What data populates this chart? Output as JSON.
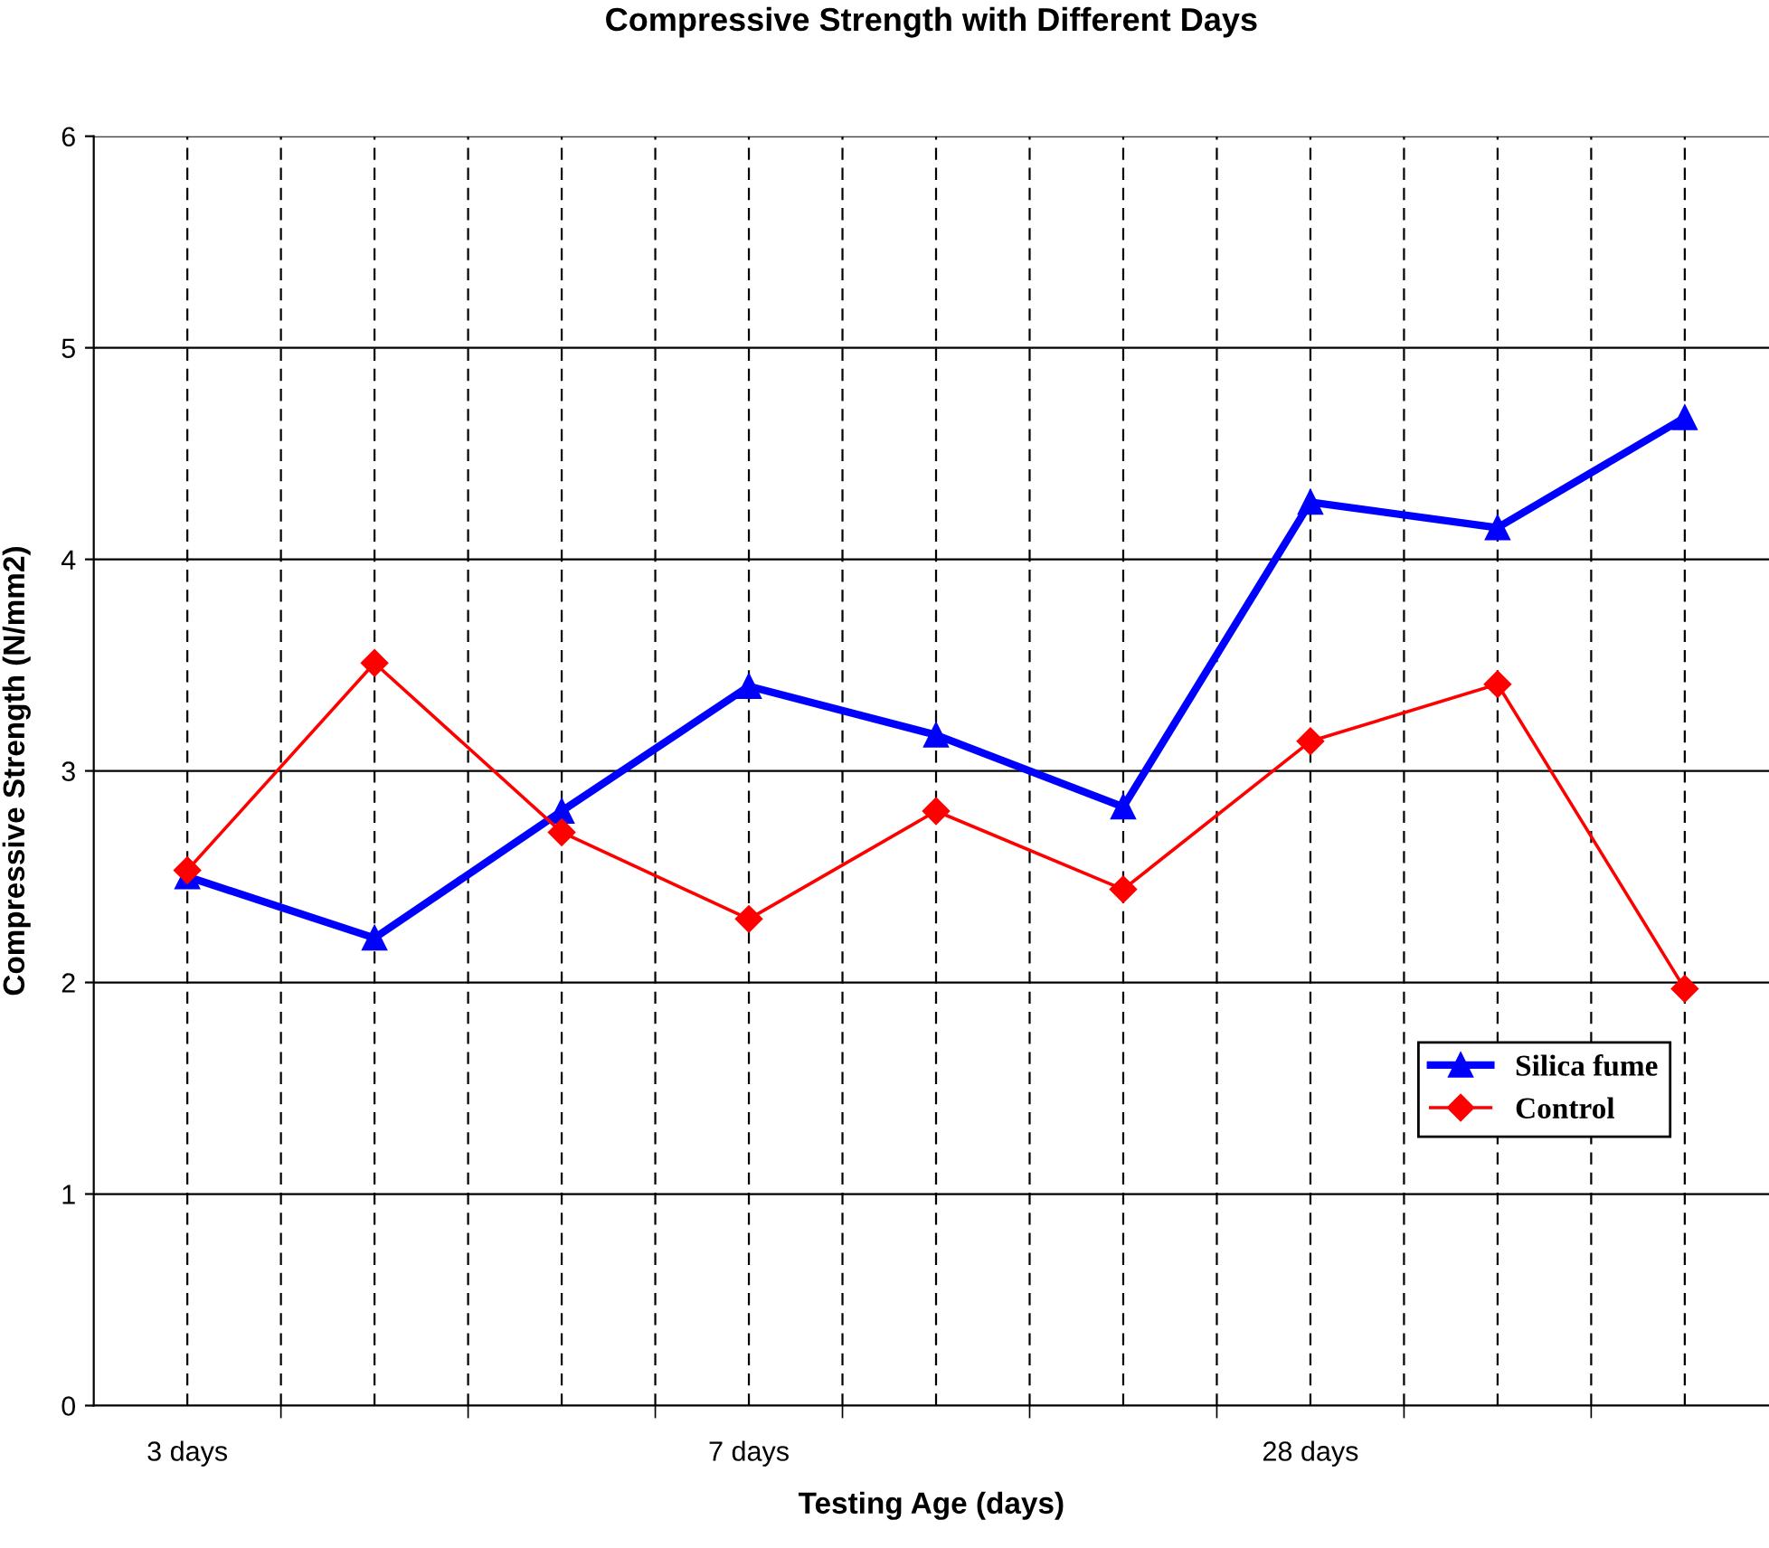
{
  "chart_data": {
    "type": "line",
    "title": "Compressive Strength with Different Days",
    "xlabel": "Testing Age (days)",
    "ylabel": "Compressive Strength (N/mm2)",
    "categories": [
      "3 days",
      null,
      null,
      "7 days",
      null,
      null,
      "28 days",
      null,
      null
    ],
    "series": [
      {
        "name": "Silica fume",
        "color": "#0000ff",
        "marker": "triangle",
        "values": [
          2.5,
          2.21,
          2.81,
          3.4,
          3.17,
          2.83,
          4.27,
          4.15,
          4.67
        ]
      },
      {
        "name": "Control",
        "color": "#ff0000",
        "marker": "diamond",
        "values": [
          2.53,
          3.51,
          2.71,
          2.3,
          2.81,
          2.44,
          3.14,
          3.41,
          1.97
        ]
      }
    ],
    "ylim": [
      0,
      6
    ],
    "yticks": [
      0,
      1,
      2,
      3,
      4,
      5,
      6
    ],
    "grid": true,
    "legend": "bottom right",
    "line_style": "solid"
  }
}
